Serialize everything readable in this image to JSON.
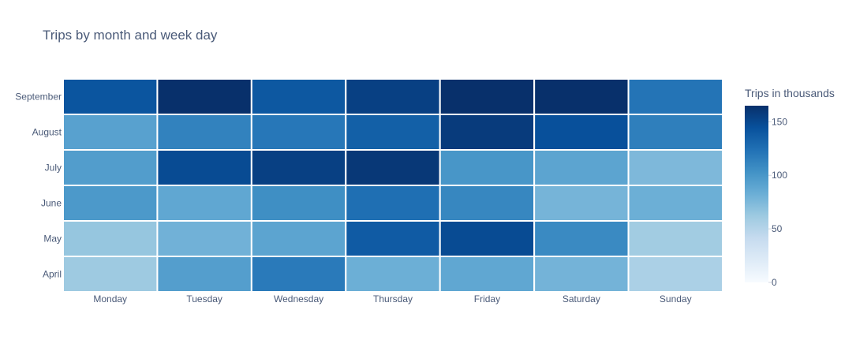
{
  "chart_data": {
    "type": "heatmap",
    "title": "Trips by month and week day",
    "x_categories": [
      "Monday",
      "Tuesday",
      "Wednesday",
      "Thursday",
      "Friday",
      "Saturday",
      "Sunday"
    ],
    "y_categories": [
      "April",
      "May",
      "June",
      "July",
      "August",
      "September"
    ],
    "values": [
      [
        62,
        94,
        118,
        82,
        88,
        79,
        55
      ],
      [
        65,
        80,
        90,
        138,
        148,
        108,
        60
      ],
      [
        98,
        88,
        105,
        125,
        110,
        78,
        82
      ],
      [
        95,
        148,
        155,
        160,
        100,
        90,
        75
      ],
      [
        92,
        113,
        120,
        135,
        158,
        145,
        115
      ],
      [
        142,
        165,
        140,
        155,
        165,
        165,
        122
      ]
    ],
    "colorbar": {
      "title": "Trips in thousands",
      "tick_labels": [
        "0",
        "50",
        "100",
        "150"
      ],
      "tick_values": [
        0,
        50,
        100,
        150
      ],
      "zmin": 0,
      "zmax": 165
    },
    "colorscale": [
      "#f7fbff",
      "#deebf7",
      "#c6dbef",
      "#9ecae1",
      "#6baed6",
      "#4292c6",
      "#2171b5",
      "#08519c",
      "#08306b"
    ]
  }
}
